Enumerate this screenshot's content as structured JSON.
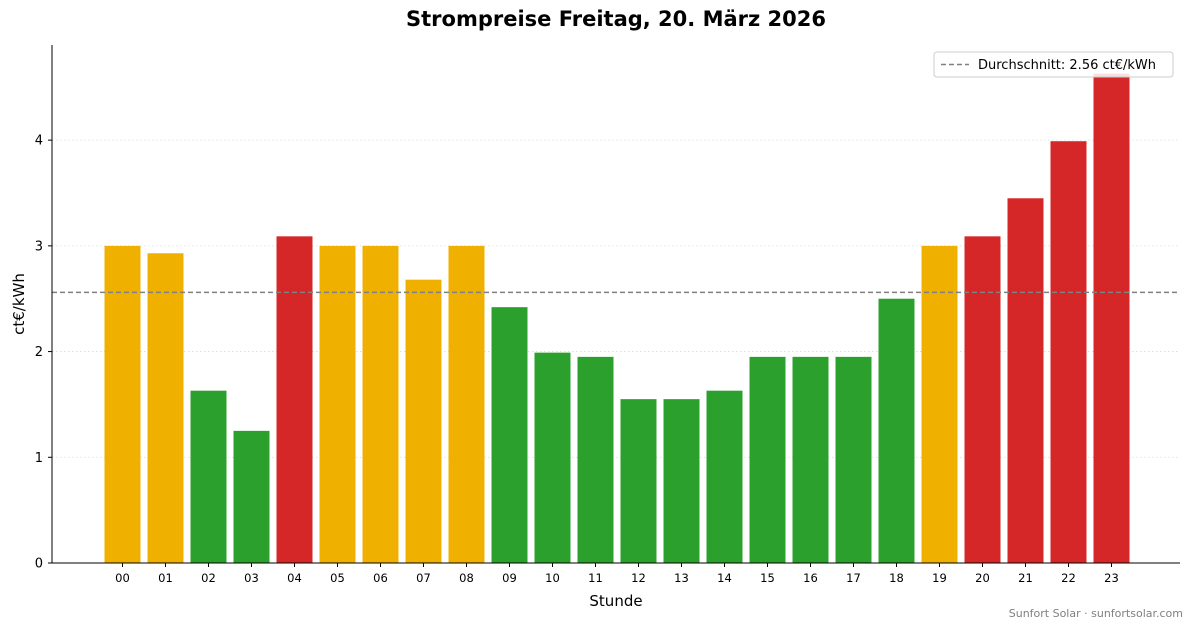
{
  "chart_data": {
    "type": "bar",
    "title": "Strompreise Freitag, 20. März 2026",
    "xlabel": "Stunde",
    "ylabel": "ct€/kWh",
    "categories": [
      "00",
      "01",
      "02",
      "03",
      "04",
      "05",
      "06",
      "07",
      "08",
      "09",
      "10",
      "11",
      "12",
      "13",
      "14",
      "15",
      "16",
      "17",
      "18",
      "19",
      "20",
      "21",
      "22",
      "23"
    ],
    "values": [
      3.0,
      2.93,
      1.63,
      1.25,
      3.09,
      3.0,
      3.0,
      2.68,
      3.0,
      2.42,
      1.99,
      1.95,
      1.55,
      1.55,
      1.63,
      1.95,
      1.95,
      1.95,
      2.5,
      3.0,
      3.09,
      3.45,
      3.99,
      4.63
    ],
    "bar_colors": [
      "#f0b000",
      "#f0b000",
      "#2ca02c",
      "#2ca02c",
      "#d62728",
      "#f0b000",
      "#f0b000",
      "#f0b000",
      "#f0b000",
      "#2ca02c",
      "#2ca02c",
      "#2ca02c",
      "#2ca02c",
      "#2ca02c",
      "#2ca02c",
      "#2ca02c",
      "#2ca02c",
      "#2ca02c",
      "#2ca02c",
      "#f0b000",
      "#d62728",
      "#d62728",
      "#d62728",
      "#d62728"
    ],
    "ylim": [
      0,
      4.9
    ],
    "yticks": [
      "0",
      "1",
      "2",
      "3",
      "4"
    ],
    "grid": "horizontal dotted",
    "average": {
      "value": 2.56,
      "label": "Durchschnitt: 2.56 ct€/kWh",
      "color": "#808080",
      "style": "dashed"
    },
    "legend_placement": "top-right"
  },
  "footer": {
    "credit": "Sunfort Solar · sunfortsolar.com"
  }
}
